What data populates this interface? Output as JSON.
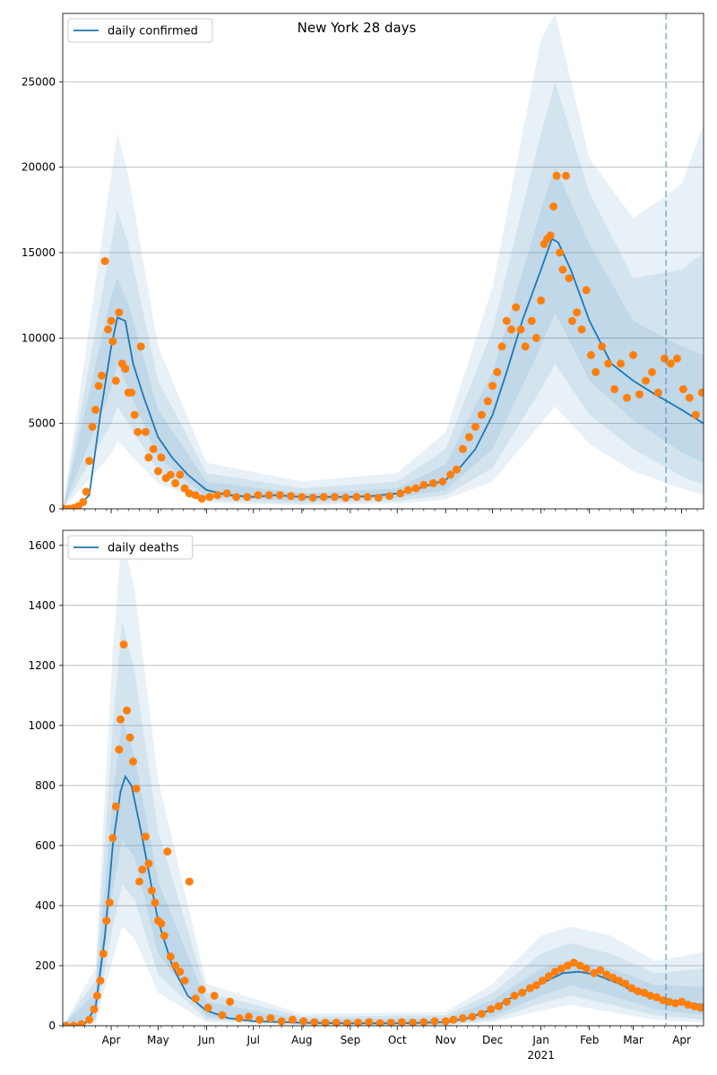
{
  "figure_title": "New York 28 days",
  "colors": {
    "line": "#1f77b4",
    "points": "#ff7f0e",
    "band": "#1f77b4",
    "grid": "#b0b0b0",
    "vline": "#1f77b4"
  },
  "chart_data": [
    {
      "type": "line",
      "title": "New York 28 days",
      "legend": "daily confirmed",
      "legend_position": "top-left",
      "grid": "horizontal",
      "xlim": [
        "2020-03-01",
        "2021-04-15"
      ],
      "ylim": [
        0,
        29000
      ],
      "yticks": [
        0,
        5000,
        10000,
        15000,
        20000,
        25000
      ],
      "vline_date": "2021-03-22",
      "series": [
        {
          "name": "daily confirmed",
          "x": [
            "2020-03-01",
            "2020-03-10",
            "2020-03-18",
            "2020-03-25",
            "2020-04-01",
            "2020-04-05",
            "2020-04-10",
            "2020-04-15",
            "2020-04-22",
            "2020-05-01",
            "2020-05-10",
            "2020-05-20",
            "2020-06-01",
            "2020-06-15",
            "2020-07-01",
            "2020-07-15",
            "2020-08-01",
            "2020-08-15",
            "2020-09-01",
            "2020-09-15",
            "2020-10-01",
            "2020-10-15",
            "2020-11-01",
            "2020-11-10",
            "2020-11-20",
            "2020-12-01",
            "2020-12-10",
            "2020-12-20",
            "2021-01-01",
            "2021-01-08",
            "2021-01-12",
            "2021-01-20",
            "2021-02-01",
            "2021-02-15",
            "2021-03-01",
            "2021-03-15",
            "2021-04-01",
            "2021-04-15"
          ],
          "y": [
            0,
            50,
            800,
            5500,
            9500,
            11200,
            11000,
            8500,
            6500,
            4200,
            3000,
            2000,
            1100,
            800,
            700,
            800,
            700,
            700,
            700,
            750,
            900,
            1200,
            1700,
            2400,
            3500,
            5500,
            8000,
            11000,
            14000,
            15800,
            15600,
            14000,
            11000,
            8500,
            7500,
            6700,
            5800,
            5000
          ]
        }
      ],
      "bands": [
        {
          "x": [
            "2020-03-01",
            "2020-04-01",
            "2020-04-05",
            "2020-04-12",
            "2020-05-01",
            "2020-06-01",
            "2020-08-01",
            "2020-10-01",
            "2020-11-01",
            "2020-12-01",
            "2021-01-01",
            "2021-01-10",
            "2021-02-01",
            "2021-03-01",
            "2021-04-01",
            "2021-04-15"
          ],
          "lower": [
            0,
            7000,
            8500,
            7000,
            3000,
            700,
            450,
            650,
            1100,
            3500,
            9500,
            11500,
            7500,
            5200,
            3300,
            2700
          ],
          "upper": [
            0,
            12500,
            13500,
            12000,
            5800,
            1600,
            900,
            1200,
            2600,
            8000,
            17500,
            20000,
            15500,
            11000,
            9500,
            9000
          ]
        },
        {
          "x": [
            "2020-03-01",
            "2020-04-01",
            "2020-04-05",
            "2020-04-12",
            "2020-05-01",
            "2020-06-01",
            "2020-08-01",
            "2020-10-01",
            "2020-11-01",
            "2020-12-01",
            "2021-01-01",
            "2021-01-10",
            "2021-02-01",
            "2021-03-01",
            "2021-04-01",
            "2021-04-15"
          ],
          "lower": [
            0,
            5000,
            6000,
            5000,
            2200,
            500,
            300,
            450,
            800,
            2400,
            7000,
            8500,
            5500,
            3500,
            1900,
            1400
          ],
          "upper": [
            0,
            15500,
            17500,
            15500,
            7500,
            2100,
            1200,
            1600,
            3500,
            10500,
            22000,
            25000,
            18500,
            13500,
            14000,
            15000
          ]
        },
        {
          "x": [
            "2020-03-01",
            "2020-04-01",
            "2020-04-05",
            "2020-04-12",
            "2020-05-01",
            "2020-06-01",
            "2020-08-01",
            "2020-10-01",
            "2020-11-01",
            "2020-12-01",
            "2021-01-01",
            "2021-01-10",
            "2021-02-01",
            "2021-03-01",
            "2021-04-01",
            "2021-04-15"
          ],
          "lower": [
            0,
            3200,
            4000,
            3300,
            1500,
            350,
            200,
            300,
            550,
            1600,
            5000,
            6000,
            3800,
            2200,
            1200,
            800
          ],
          "upper": [
            0,
            19500,
            22000,
            19500,
            9500,
            2700,
            1600,
            2100,
            4500,
            13000,
            27500,
            29000,
            20500,
            17000,
            19000,
            22500
          ]
        }
      ],
      "points": {
        "x": [
          "2020-03-02",
          "2020-03-05",
          "2020-03-08",
          "2020-03-11",
          "2020-03-14",
          "2020-03-16",
          "2020-03-18",
          "2020-03-20",
          "2020-03-22",
          "2020-03-24",
          "2020-03-26",
          "2020-03-28",
          "2020-03-30",
          "2020-04-01",
          "2020-04-02",
          "2020-04-04",
          "2020-04-06",
          "2020-04-08",
          "2020-04-10",
          "2020-04-12",
          "2020-04-14",
          "2020-04-16",
          "2020-04-18",
          "2020-04-20",
          "2020-04-23",
          "2020-04-25",
          "2020-04-28",
          "2020-05-01",
          "2020-05-03",
          "2020-05-06",
          "2020-05-09",
          "2020-05-12",
          "2020-05-15",
          "2020-05-18",
          "2020-05-21",
          "2020-05-25",
          "2020-05-29",
          "2020-06-03",
          "2020-06-08",
          "2020-06-14",
          "2020-06-20",
          "2020-06-27",
          "2020-07-04",
          "2020-07-11",
          "2020-07-18",
          "2020-07-25",
          "2020-08-01",
          "2020-08-08",
          "2020-08-15",
          "2020-08-22",
          "2020-08-29",
          "2020-09-05",
          "2020-09-12",
          "2020-09-19",
          "2020-09-26",
          "2020-10-03",
          "2020-10-08",
          "2020-10-13",
          "2020-10-18",
          "2020-10-24",
          "2020-10-30",
          "2020-11-04",
          "2020-11-08",
          "2020-11-12",
          "2020-11-16",
          "2020-11-20",
          "2020-11-24",
          "2020-11-28",
          "2020-12-01",
          "2020-12-04",
          "2020-12-07",
          "2020-12-10",
          "2020-12-13",
          "2020-12-16",
          "2020-12-19",
          "2020-12-22",
          "2020-12-26",
          "2020-12-29",
          "2021-01-01",
          "2021-01-03",
          "2021-01-05",
          "2021-01-07",
          "2021-01-09",
          "2021-01-11",
          "2021-01-13",
          "2021-01-15",
          "2021-01-17",
          "2021-01-19",
          "2021-01-21",
          "2021-01-24",
          "2021-01-27",
          "2021-01-30",
          "2021-02-02",
          "2021-02-05",
          "2021-02-09",
          "2021-02-13",
          "2021-02-17",
          "2021-02-21",
          "2021-02-25",
          "2021-03-01",
          "2021-03-05",
          "2021-03-09",
          "2021-03-13",
          "2021-03-17",
          "2021-03-21",
          "2021-03-25",
          "2021-03-29",
          "2021-04-02",
          "2021-04-06",
          "2021-04-10",
          "2021-04-14"
        ],
        "y": [
          0,
          0,
          50,
          150,
          400,
          1000,
          2800,
          4800,
          5800,
          7200,
          7800,
          14500,
          10500,
          11000,
          9800,
          7500,
          11500,
          8500,
          8200,
          6800,
          6800,
          5500,
          4500,
          9500,
          4500,
          3000,
          3500,
          2200,
          3000,
          1800,
          2000,
          1500,
          2000,
          1200,
          900,
          800,
          600,
          700,
          800,
          900,
          700,
          700,
          800,
          800,
          800,
          750,
          700,
          650,
          700,
          700,
          650,
          700,
          700,
          650,
          750,
          900,
          1100,
          1200,
          1400,
          1500,
          1600,
          2000,
          2300,
          3500,
          4200,
          4800,
          5500,
          6300,
          7200,
          8000,
          9500,
          11000,
          10500,
          11800,
          10500,
          9500,
          11000,
          10000,
          12200,
          15500,
          15800,
          16000,
          17700,
          19500,
          15000,
          14000,
          19500,
          13500,
          11000,
          11500,
          10500,
          12800,
          9000,
          8000,
          9500,
          8500,
          7000,
          8500,
          6500,
          9000,
          6700,
          7500,
          8000,
          6800,
          8800,
          8500,
          8800,
          7000,
          6500,
          5500,
          6800
        ]
      }
    },
    {
      "type": "line",
      "title": "",
      "legend": "daily deaths",
      "legend_position": "top-left",
      "grid": "horizontal",
      "xlim": [
        "2020-03-01",
        "2021-04-15"
      ],
      "ylim": [
        0,
        1650
      ],
      "yticks": [
        0,
        200,
        400,
        600,
        800,
        1000,
        1200,
        1400,
        1600
      ],
      "vline_date": "2021-03-22",
      "xticks_major": [
        "Apr",
        "May",
        "Jun",
        "Jul",
        "Aug",
        "Sep",
        "Oct",
        "Nov",
        "Dec",
        "Jan",
        "Feb",
        "Mar",
        "Apr"
      ],
      "xticks_major_dates": [
        "2020-04-01",
        "2020-05-01",
        "2020-06-01",
        "2020-07-01",
        "2020-08-01",
        "2020-09-01",
        "2020-10-01",
        "2020-11-01",
        "2020-12-01",
        "2021-01-01",
        "2021-02-01",
        "2021-03-01",
        "2021-04-01"
      ],
      "year_label": "2021",
      "series": [
        {
          "name": "daily deaths",
          "x": [
            "2020-03-01",
            "2020-03-15",
            "2020-03-22",
            "2020-03-28",
            "2020-04-02",
            "2020-04-07",
            "2020-04-10",
            "2020-04-14",
            "2020-04-20",
            "2020-05-01",
            "2020-05-10",
            "2020-05-20",
            "2020-06-01",
            "2020-06-15",
            "2020-07-01",
            "2020-08-01",
            "2020-09-01",
            "2020-10-01",
            "2020-11-01",
            "2020-11-15",
            "2020-12-01",
            "2020-12-15",
            "2021-01-01",
            "2021-01-15",
            "2021-01-25",
            "2021-02-05",
            "2021-02-20",
            "2021-03-01",
            "2021-03-15",
            "2021-04-01",
            "2021-04-15"
          ],
          "y": [
            0,
            5,
            60,
            300,
            600,
            780,
            830,
            800,
            650,
            350,
            200,
            100,
            50,
            25,
            15,
            10,
            8,
            8,
            12,
            25,
            55,
            100,
            140,
            175,
            180,
            170,
            140,
            115,
            90,
            75,
            70
          ]
        }
      ],
      "bands": [
        {
          "x": [
            "2020-03-01",
            "2020-03-22",
            "2020-04-02",
            "2020-04-08",
            "2020-04-16",
            "2020-05-01",
            "2020-06-01",
            "2020-08-01",
            "2020-11-01",
            "2020-12-01",
            "2021-01-01",
            "2021-01-20",
            "2021-02-15",
            "2021-03-15",
            "2021-04-15"
          ],
          "lower": [
            0,
            25,
            450,
            620,
            560,
            240,
            30,
            5,
            5,
            30,
            100,
            135,
            100,
            55,
            35
          ],
          "upper": [
            0,
            110,
            760,
            1020,
            900,
            480,
            80,
            20,
            25,
            85,
            190,
            220,
            190,
            135,
            130
          ]
        },
        {
          "x": [
            "2020-03-01",
            "2020-03-22",
            "2020-04-02",
            "2020-04-08",
            "2020-04-16",
            "2020-05-01",
            "2020-06-01",
            "2020-08-01",
            "2020-11-01",
            "2020-12-01",
            "2021-01-01",
            "2021-01-20",
            "2021-02-15",
            "2021-03-15",
            "2021-04-15"
          ],
          "lower": [
            0,
            15,
            330,
            470,
            420,
            170,
            20,
            3,
            3,
            20,
            75,
            100,
            70,
            35,
            20
          ],
          "upper": [
            0,
            150,
            1000,
            1350,
            1180,
            650,
            110,
            30,
            35,
            110,
            240,
            275,
            240,
            175,
            190
          ]
        },
        {
          "x": [
            "2020-03-01",
            "2020-03-22",
            "2020-04-02",
            "2020-04-08",
            "2020-04-16",
            "2020-05-01",
            "2020-06-01",
            "2020-08-01",
            "2020-11-01",
            "2020-12-01",
            "2021-01-01",
            "2021-01-20",
            "2021-02-15",
            "2021-03-15",
            "2021-04-15"
          ],
          "lower": [
            0,
            8,
            220,
            330,
            290,
            110,
            12,
            2,
            2,
            12,
            50,
            70,
            45,
            20,
            10
          ],
          "upper": [
            0,
            190,
            1250,
            1640,
            1450,
            820,
            140,
            40,
            45,
            140,
            300,
            330,
            300,
            215,
            245
          ]
        }
      ],
      "points": {
        "x": [
          "2020-03-03",
          "2020-03-08",
          "2020-03-13",
          "2020-03-18",
          "2020-03-21",
          "2020-03-23",
          "2020-03-25",
          "2020-03-27",
          "2020-03-29",
          "2020-03-31",
          "2020-04-02",
          "2020-04-04",
          "2020-04-06",
          "2020-04-07",
          "2020-04-09",
          "2020-04-11",
          "2020-04-13",
          "2020-04-15",
          "2020-04-17",
          "2020-04-19",
          "2020-04-21",
          "2020-04-23",
          "2020-04-25",
          "2020-04-27",
          "2020-04-29",
          "2020-05-01",
          "2020-05-03",
          "2020-05-05",
          "2020-05-07",
          "2020-05-09",
          "2020-05-12",
          "2020-05-15",
          "2020-05-18",
          "2020-05-21",
          "2020-05-25",
          "2020-05-29",
          "2020-06-02",
          "2020-06-06",
          "2020-06-11",
          "2020-06-16",
          "2020-06-22",
          "2020-06-28",
          "2020-07-05",
          "2020-07-12",
          "2020-07-19",
          "2020-07-26",
          "2020-08-02",
          "2020-08-09",
          "2020-08-16",
          "2020-08-23",
          "2020-08-30",
          "2020-09-06",
          "2020-09-13",
          "2020-09-20",
          "2020-09-27",
          "2020-10-04",
          "2020-10-11",
          "2020-10-18",
          "2020-10-25",
          "2020-11-01",
          "2020-11-06",
          "2020-11-12",
          "2020-11-18",
          "2020-11-24",
          "2020-11-30",
          "2020-12-05",
          "2020-12-10",
          "2020-12-15",
          "2020-12-20",
          "2020-12-25",
          "2020-12-29",
          "2021-01-02",
          "2021-01-06",
          "2021-01-10",
          "2021-01-14",
          "2021-01-18",
          "2021-01-22",
          "2021-01-26",
          "2021-01-30",
          "2021-02-04",
          "2021-02-08",
          "2021-02-12",
          "2021-02-16",
          "2021-02-20",
          "2021-02-24",
          "2021-02-28",
          "2021-03-04",
          "2021-03-08",
          "2021-03-12",
          "2021-03-16",
          "2021-03-20",
          "2021-03-24",
          "2021-03-28",
          "2021-04-01",
          "2021-04-05",
          "2021-04-09",
          "2021-04-13"
        ],
        "y": [
          0,
          0,
          5,
          20,
          55,
          100,
          150,
          240,
          350,
          410,
          625,
          730,
          920,
          1020,
          1270,
          1050,
          960,
          880,
          790,
          480,
          520,
          630,
          540,
          450,
          410,
          350,
          340,
          300,
          580,
          230,
          200,
          180,
          150,
          480,
          90,
          120,
          60,
          100,
          35,
          80,
          25,
          30,
          20,
          25,
          15,
          20,
          15,
          12,
          10,
          10,
          8,
          10,
          12,
          8,
          10,
          12,
          10,
          12,
          15,
          15,
          20,
          25,
          30,
          40,
          55,
          65,
          80,
          100,
          110,
          125,
          135,
          150,
          165,
          180,
          190,
          200,
          210,
          200,
          190,
          175,
          185,
          170,
          160,
          150,
          140,
          125,
          115,
          110,
          100,
          95,
          85,
          80,
          75,
          80,
          70,
          65,
          60
        ]
      }
    }
  ]
}
